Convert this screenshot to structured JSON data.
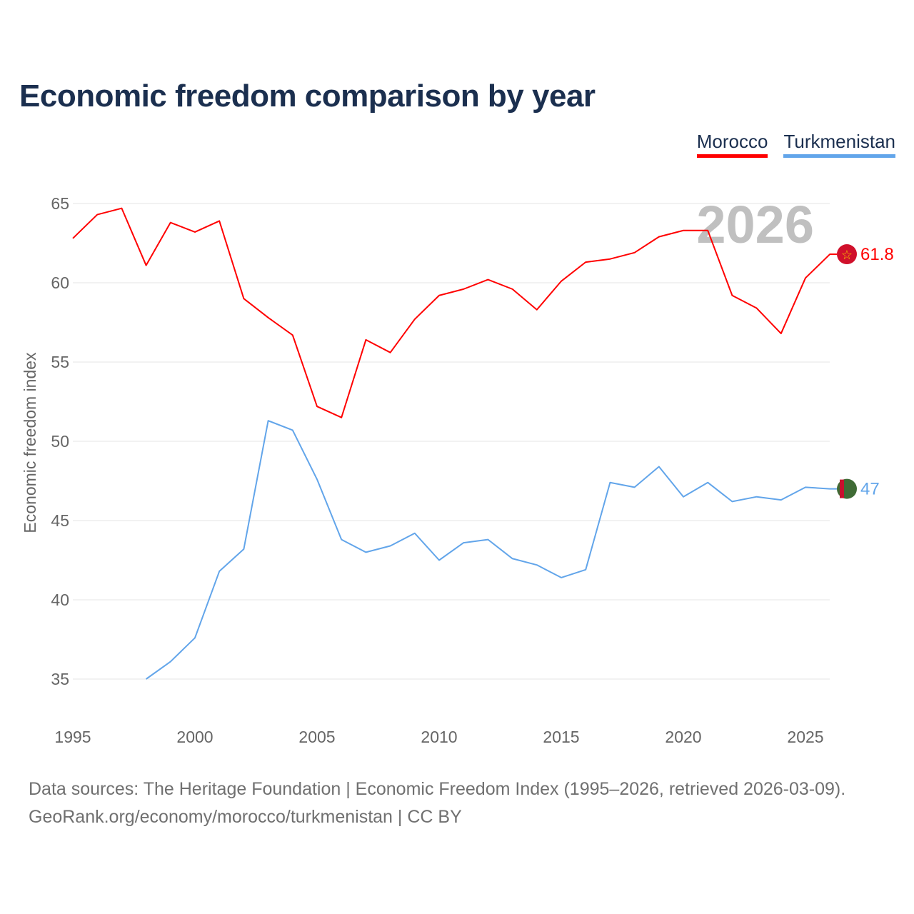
{
  "title": "Economic freedom comparison by year",
  "legend": [
    {
      "name": "Morocco",
      "color": "#ff0000"
    },
    {
      "name": "Turkmenistan",
      "color": "#62a5ea"
    }
  ],
  "year_watermark": "2026",
  "footer": {
    "line1": "Data sources: The Heritage Foundation | Economic Freedom Index (1995–2026, retrieved 2026-03-09).",
    "line2": "GeoRank.org/economy/morocco/turkmenistan | CC BY"
  },
  "chart_data": {
    "type": "line",
    "title": "Economic freedom comparison by year",
    "xlabel": "",
    "ylabel": "Economic freedom index",
    "xlim": [
      1995,
      2026
    ],
    "ylim": [
      33,
      67
    ],
    "xticks": [
      1995,
      2000,
      2005,
      2010,
      2015,
      2020,
      2025
    ],
    "yticks": [
      35,
      40,
      45,
      50,
      55,
      60,
      65
    ],
    "grid": true,
    "legend_position": "top-right",
    "series": [
      {
        "name": "Morocco",
        "color": "#ff0000",
        "end_label": "61.8",
        "x": [
          1995,
          1996,
          1997,
          1998,
          1999,
          2000,
          2001,
          2002,
          2003,
          2004,
          2005,
          2006,
          2007,
          2008,
          2009,
          2010,
          2011,
          2012,
          2013,
          2014,
          2015,
          2016,
          2017,
          2018,
          2019,
          2020,
          2021,
          2022,
          2023,
          2024,
          2025,
          2026
        ],
        "values": [
          62.8,
          64.3,
          64.7,
          61.1,
          63.8,
          63.2,
          63.9,
          59.0,
          57.8,
          56.7,
          52.2,
          51.5,
          56.4,
          55.6,
          57.7,
          59.2,
          59.6,
          60.2,
          59.6,
          58.3,
          60.1,
          61.3,
          61.5,
          61.9,
          62.9,
          63.3,
          63.3,
          59.2,
          58.4,
          56.8,
          60.3,
          61.8
        ]
      },
      {
        "name": "Turkmenistan",
        "color": "#62a5ea",
        "end_label": "47",
        "x": [
          1998,
          1999,
          2000,
          2001,
          2002,
          2003,
          2004,
          2005,
          2006,
          2007,
          2008,
          2009,
          2010,
          2011,
          2012,
          2013,
          2014,
          2015,
          2016,
          2017,
          2018,
          2019,
          2020,
          2021,
          2022,
          2023,
          2024,
          2025,
          2026
        ],
        "values": [
          35.0,
          36.1,
          37.6,
          41.8,
          43.2,
          51.3,
          50.7,
          47.6,
          43.8,
          43.0,
          43.4,
          44.2,
          42.5,
          43.6,
          43.8,
          42.6,
          42.2,
          41.4,
          41.9,
          47.4,
          47.1,
          48.4,
          46.5,
          47.4,
          46.2,
          46.5,
          46.3,
          47.1,
          47.0
        ]
      }
    ]
  }
}
